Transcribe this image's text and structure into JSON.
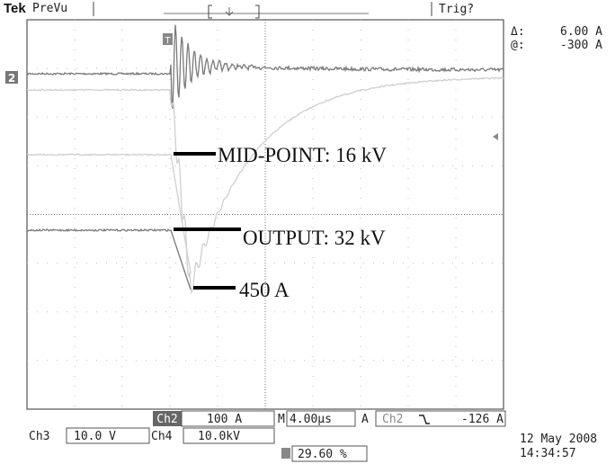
{
  "header": {
    "brand": "Tek",
    "mode": "PreVu",
    "trigger_status": "Trig?"
  },
  "cursor_readout": {
    "delta_label": "Δ:",
    "delta_value": "6.00 A",
    "at_label": "@:",
    "at_value": "-300 A"
  },
  "markers": {
    "channel": "2",
    "trigger": "T"
  },
  "annotations": [
    "MID-POINT: 16 kV",
    "OUTPUT: 32 kV",
    "450 A"
  ],
  "status": {
    "ch2_label": "Ch2",
    "ch2_scale": "100 A",
    "timebase_label": "M",
    "timebase": "4.00µs",
    "trigger_mode": "A",
    "trigger_source": "Ch2",
    "trigger_level": "-126 A",
    "ch3_label": "Ch3",
    "ch3_scale": "10.0 V",
    "ch4_label": "Ch4",
    "ch4_scale": "10.0kV",
    "trigger_position": "29.60 %",
    "date": "12 May 2008",
    "time": "14:34:57"
  }
}
